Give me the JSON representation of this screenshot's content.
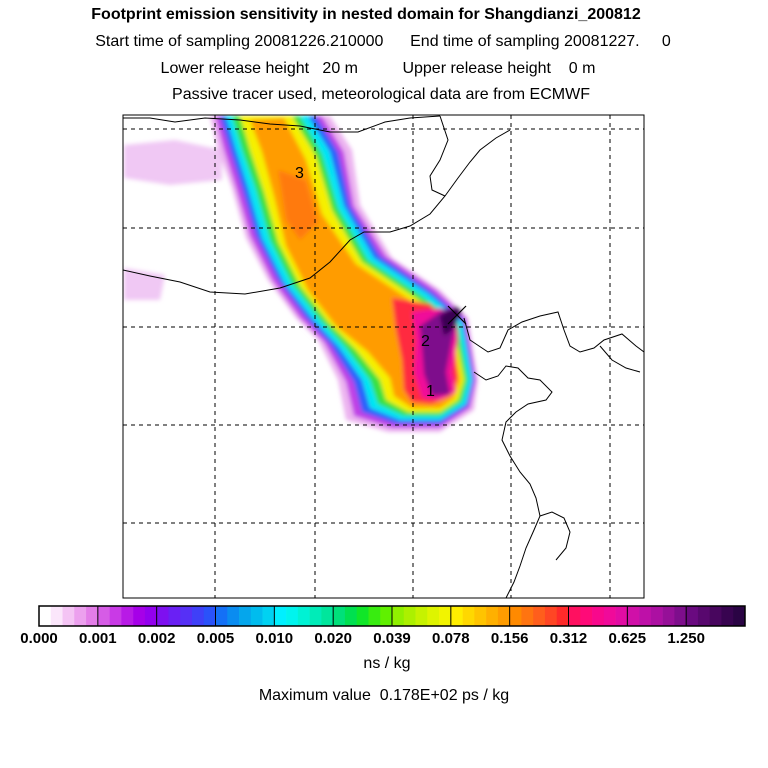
{
  "titles": {
    "line1": "Footprint emission sensitivity in nested domain for Shangdianzi_200812",
    "line2": "Start time of sampling 20081226.210000      End time of sampling 20081227.     0",
    "line3": "Lower release height   20 m          Upper release height    0 m",
    "line4": "Passive tracer used, meteorological data are from ECMWF"
  },
  "chart_data": {
    "type": "heatmap",
    "title": "Footprint emission sensitivity in nested domain for Shangdianzi_200812",
    "colorbar": {
      "tick_labels": [
        "0.000",
        "0.001",
        "0.002",
        "0.005",
        "0.010",
        "0.020",
        "0.039",
        "0.078",
        "0.156",
        "0.312",
        "0.625",
        "1.250"
      ],
      "colors": [
        [
          "#ffffff",
          "#fbe6fb",
          "#f4c4f4",
          "#eca0ee",
          "#e37de8"
        ],
        [
          "#d65ce6",
          "#c93ae6",
          "#b81ae6",
          "#a600e8",
          "#9300ee"
        ],
        [
          "#7e10f0",
          "#6a20f4",
          "#5630f6",
          "#3f40f8",
          "#2a52fa"
        ],
        [
          "#1470f6",
          "#0a8cf0",
          "#05a6ec",
          "#00bcee",
          "#00d2f2"
        ],
        [
          "#00f0ff",
          "#00f4ee",
          "#00f2d4",
          "#00ecb8",
          "#00e69c"
        ],
        [
          "#00e07a",
          "#00e050",
          "#10e628",
          "#38ec10",
          "#60f000"
        ],
        [
          "#90f000",
          "#acf000",
          "#c6f200",
          "#def400",
          "#f2f400"
        ],
        [
          "#ffee00",
          "#ffd800",
          "#ffc400",
          "#ffb000",
          "#ff9c00"
        ],
        [
          "#ff8a00",
          "#ff7410",
          "#ff5e1c",
          "#ff4624",
          "#ff2a2a"
        ],
        [
          "#ff1060",
          "#ff0a78",
          "#f8088c",
          "#f00a9a",
          "#e20ca4"
        ],
        [
          "#d010a8",
          "#be10a8",
          "#ac10a2",
          "#961098",
          "#7e0e8c"
        ],
        [
          "#6a0a80",
          "#58086e",
          "#48065e",
          "#380450",
          "#2a0444"
        ]
      ],
      "unit": "ns / kg"
    },
    "annotation": "Maximum value  0.178E+02 ps / kg",
    "markers": [
      "1",
      "2",
      "3"
    ],
    "grid": true
  }
}
